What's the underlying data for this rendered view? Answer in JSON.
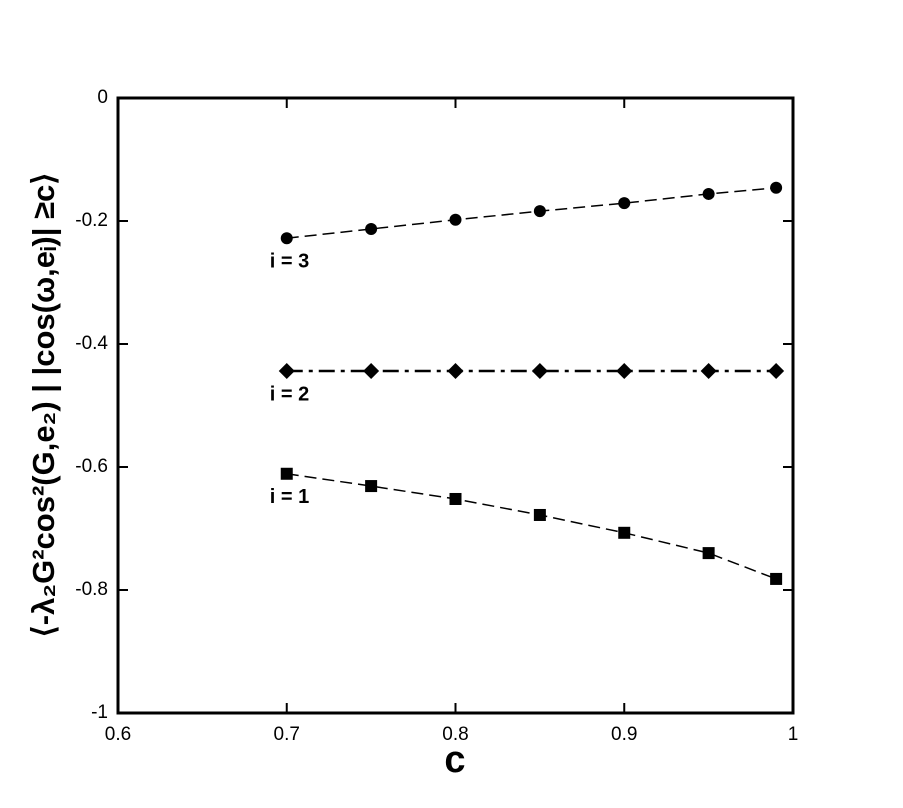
{
  "chart_data": {
    "type": "line",
    "xlabel": "c",
    "ylabel": "⟨-λ₂G²cos²(G,e₂) | |cos(ω,eᵢ)| ≥c⟩",
    "x": [
      0.7,
      0.75,
      0.8,
      0.85,
      0.9,
      0.95,
      0.99
    ],
    "series": [
      {
        "name": "i = 3",
        "color": "#000000",
        "marker": "circle",
        "dash": "dashed",
        "values": [
          -0.228,
          -0.213,
          -0.198,
          -0.184,
          -0.171,
          -0.156,
          -0.146
        ]
      },
      {
        "name": "i = 2",
        "color": "#000000",
        "marker": "diamond",
        "dash": "dashdot",
        "values": [
          -0.444,
          -0.444,
          -0.444,
          -0.444,
          -0.444,
          -0.444,
          -0.444
        ]
      },
      {
        "name": "i = 1",
        "color": "#000000",
        "marker": "square",
        "dash": "dashed",
        "values": [
          -0.611,
          -0.631,
          -0.652,
          -0.678,
          -0.707,
          -0.74,
          -0.782
        ]
      }
    ],
    "xlim": [
      0.6,
      1
    ],
    "xticks": [
      0.6,
      0.7,
      0.8,
      0.9,
      1
    ],
    "ylim": [
      -1,
      0
    ],
    "yticks": [
      0,
      -0.2,
      -0.4,
      -0.6,
      -0.8,
      -1
    ]
  }
}
